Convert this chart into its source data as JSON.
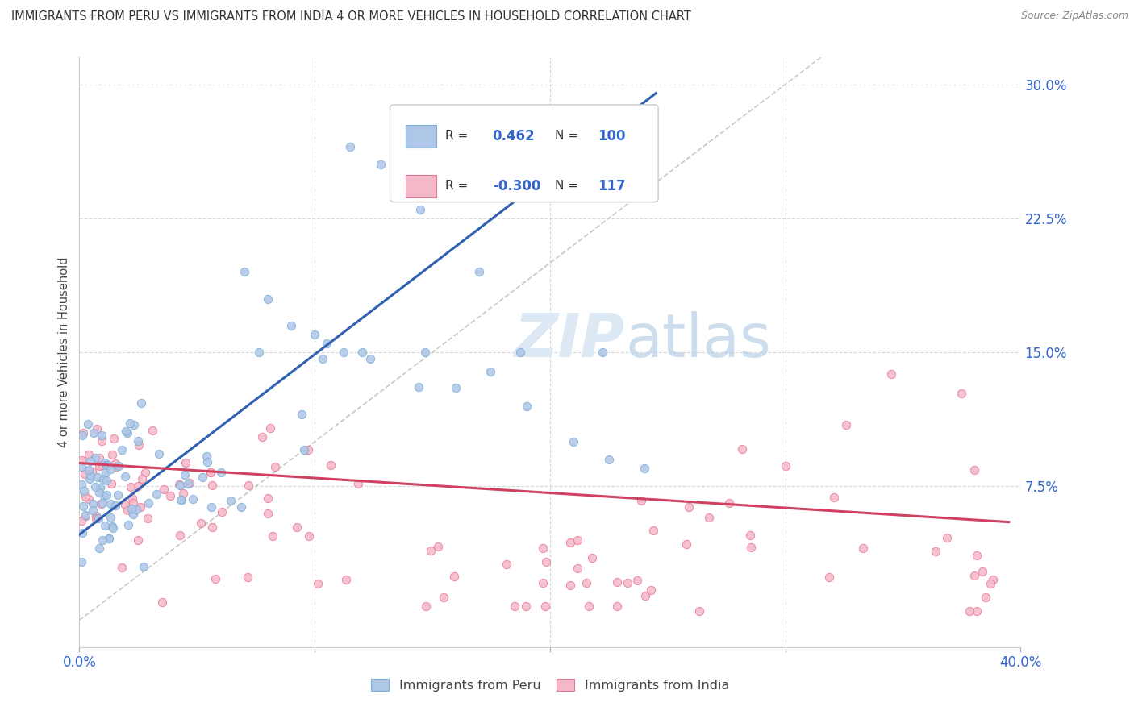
{
  "title": "IMMIGRANTS FROM PERU VS IMMIGRANTS FROM INDIA 4 OR MORE VEHICLES IN HOUSEHOLD CORRELATION CHART",
  "source": "Source: ZipAtlas.com",
  "ylabel": "4 or more Vehicles in Household",
  "xlim": [
    0.0,
    0.4
  ],
  "ylim": [
    -0.015,
    0.315
  ],
  "xtick_positions": [
    0.0,
    0.1,
    0.2,
    0.3,
    0.4
  ],
  "xticklabels": [
    "0.0%",
    "",
    "",
    "",
    "40.0%"
  ],
  "ytick_positions": [
    0.075,
    0.15,
    0.225,
    0.3
  ],
  "ytick_labels": [
    "7.5%",
    "15.0%",
    "22.5%",
    "30.0%"
  ],
  "peru_fill_color": "#aec6e8",
  "peru_edge_color": "#7bafd4",
  "india_fill_color": "#f5b8c8",
  "india_edge_color": "#e87898",
  "peru_line_color": "#3060b0",
  "india_line_color": "#d04060",
  "ref_line_color": "#c8c8c8",
  "legend_box_color": "#ffffff",
  "legend_border_color": "#cccccc",
  "legend_R_peru": "0.462",
  "legend_N_peru": "100",
  "legend_R_india": "-0.300",
  "legend_N_india": "117",
  "text_color": "#3366cc",
  "label_color": "#444444",
  "watermark_color": "#dce8f4",
  "title_color": "#333333",
  "source_color": "#888888",
  "peru_line_x": [
    0.0,
    0.245
  ],
  "peru_line_y": [
    0.048,
    0.295
  ],
  "india_line_x": [
    0.0,
    0.395
  ],
  "india_line_y": [
    0.088,
    0.055
  ],
  "ref_line_x": [
    0.0,
    0.315
  ],
  "ref_line_y": [
    0.0,
    0.315
  ]
}
